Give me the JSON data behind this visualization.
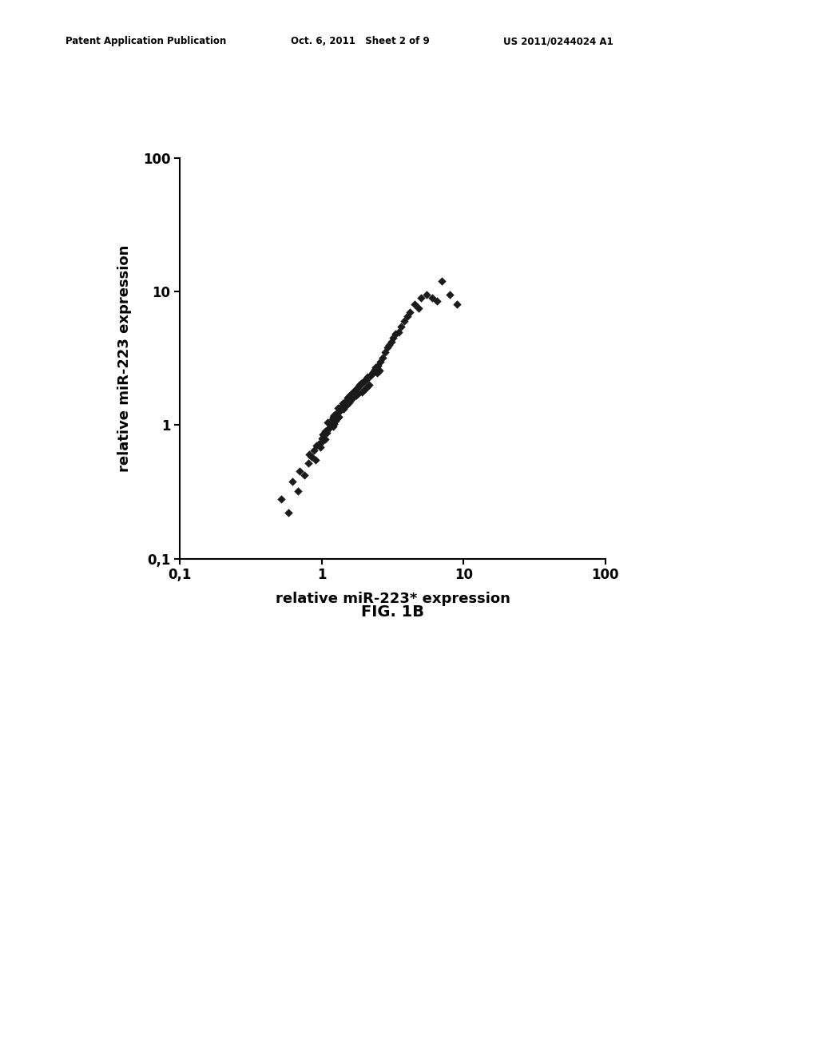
{
  "xlabel": "relative miR-223* expression",
  "ylabel": "relative miR-223 expression",
  "figure_label": "FIG. 1B",
  "header_left": "Patent Application Publication",
  "header_mid": "Oct. 6, 2011   Sheet 2 of 9",
  "header_right": "US 2011/0244024 A1",
  "marker_color": "#1a1a1a",
  "marker_size": 28,
  "xlim": [
    0.1,
    100
  ],
  "ylim": [
    0.1,
    100
  ],
  "xticks": [
    0.1,
    1,
    10,
    100
  ],
  "yticks": [
    0.1,
    1,
    10,
    100
  ],
  "xticklabels": [
    "0,1",
    "1",
    "10",
    "100"
  ],
  "yticklabels": [
    "0,1",
    "1",
    "10",
    "100"
  ],
  "scatter_x": [
    0.52,
    0.58,
    0.62,
    0.68,
    0.7,
    0.75,
    0.8,
    0.82,
    0.85,
    0.88,
    0.9,
    0.92,
    0.95,
    0.98,
    1.0,
    1.0,
    1.02,
    1.05,
    1.05,
    1.08,
    1.1,
    1.1,
    1.12,
    1.15,
    1.18,
    1.2,
    1.2,
    1.22,
    1.22,
    1.25,
    1.25,
    1.28,
    1.3,
    1.3,
    1.32,
    1.35,
    1.38,
    1.4,
    1.42,
    1.45,
    1.48,
    1.5,
    1.5,
    1.52,
    1.55,
    1.55,
    1.58,
    1.6,
    1.62,
    1.65,
    1.68,
    1.7,
    1.72,
    1.75,
    1.78,
    1.8,
    1.82,
    1.85,
    1.9,
    1.92,
    1.95,
    2.0,
    2.0,
    2.05,
    2.08,
    2.1,
    2.1,
    2.15,
    2.2,
    2.25,
    2.3,
    2.35,
    2.4,
    2.45,
    2.5,
    2.55,
    2.6,
    2.7,
    2.8,
    2.9,
    3.0,
    3.1,
    3.2,
    3.3,
    3.5,
    3.6,
    3.8,
    4.0,
    4.2,
    4.5,
    4.8,
    5.0,
    5.5,
    6.0,
    6.5,
    7.0,
    8.0,
    9.0
  ],
  "scatter_y": [
    0.28,
    0.22,
    0.38,
    0.32,
    0.45,
    0.42,
    0.52,
    0.6,
    0.58,
    0.65,
    0.55,
    0.7,
    0.72,
    0.68,
    0.75,
    0.8,
    0.85,
    0.9,
    0.78,
    0.88,
    0.92,
    1.05,
    0.95,
    1.0,
    1.1,
    0.98,
    1.15,
    1.02,
    1.18,
    1.08,
    1.2,
    1.12,
    1.25,
    1.35,
    1.15,
    1.28,
    1.4,
    1.45,
    1.32,
    1.38,
    1.5,
    1.42,
    1.55,
    1.6,
    1.48,
    1.65,
    1.52,
    1.7,
    1.58,
    1.75,
    1.62,
    1.8,
    1.85,
    1.68,
    1.9,
    1.72,
    1.95,
    2.0,
    2.05,
    1.78,
    2.1,
    2.15,
    1.85,
    2.2,
    1.92,
    2.25,
    2.3,
    2.0,
    2.35,
    2.4,
    2.5,
    2.6,
    2.7,
    2.45,
    2.8,
    2.55,
    3.0,
    3.2,
    3.5,
    3.8,
    4.0,
    4.2,
    4.5,
    4.8,
    5.0,
    5.5,
    6.0,
    6.5,
    7.0,
    8.0,
    7.5,
    9.0,
    9.5,
    9.0,
    8.5,
    12.0,
    9.5,
    8.0
  ]
}
